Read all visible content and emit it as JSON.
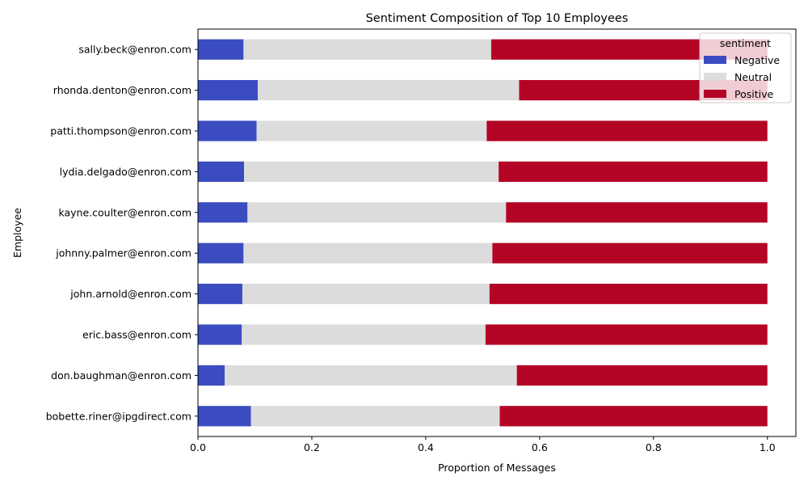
{
  "chart_data": {
    "type": "bar",
    "orientation": "horizontal",
    "stacked": true,
    "title": "Sentiment Composition of Top 10 Employees",
    "xlabel": "Proportion of Messages",
    "ylabel": "Employee",
    "xlim": [
      0,
      1.05
    ],
    "xticks": [
      0.0,
      0.2,
      0.4,
      0.6,
      0.8,
      1.0
    ],
    "xtick_labels": [
      "0.0",
      "0.2",
      "0.4",
      "0.6",
      "0.8",
      "1.0"
    ],
    "grid": false,
    "legend": {
      "title": "sentiment",
      "placement": "top-right"
    },
    "categories": [
      "sally.beck@enron.com",
      "rhonda.denton@enron.com",
      "patti.thompson@enron.com",
      "lydia.delgado@enron.com",
      "kayne.coulter@enron.com",
      "johnny.palmer@enron.com",
      "john.arnold@enron.com",
      "eric.bass@enron.com",
      "don.baughman@enron.com",
      "bobette.riner@ipgdirect.com"
    ],
    "series": [
      {
        "name": "Negative",
        "color": "#3b4cc0",
        "values": [
          0.08,
          0.105,
          0.103,
          0.081,
          0.087,
          0.08,
          0.078,
          0.077,
          0.047,
          0.093
        ]
      },
      {
        "name": "Neutral",
        "color": "#dcdcdc",
        "values": [
          0.435,
          0.459,
          0.404,
          0.447,
          0.454,
          0.437,
          0.434,
          0.428,
          0.513,
          0.437
        ]
      },
      {
        "name": "Positive",
        "color": "#b40426",
        "values": [
          0.485,
          0.436,
          0.493,
          0.472,
          0.459,
          0.483,
          0.488,
          0.495,
          0.44,
          0.47
        ]
      }
    ]
  }
}
